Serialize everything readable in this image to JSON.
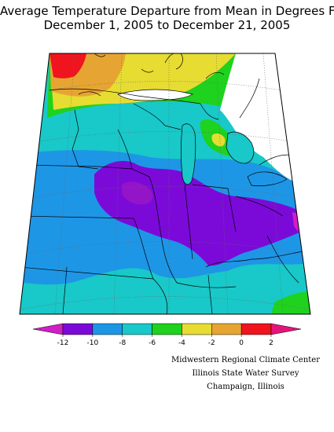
{
  "title": {
    "line1": "Average Temperature Departure from Mean in Degrees F",
    "line2": "December 1, 2005 to December 21, 2005"
  },
  "legend": {
    "ticks": [
      "-12",
      "-10",
      "-8",
      "-6",
      "-4",
      "-2",
      "0",
      "2"
    ],
    "bins": [
      {
        "label": "< -12",
        "color": "#d21ec8"
      },
      {
        "label": "-12 to -10",
        "color": "#7b0ad9"
      },
      {
        "label": "-10 to -8",
        "color": "#1e96e6"
      },
      {
        "label": "-8 to -6",
        "color": "#19c8c8"
      },
      {
        "label": "-6 to -4",
        "color": "#1ed21e"
      },
      {
        "label": "-4 to -2",
        "color": "#e6dc32"
      },
      {
        "label": "-2 to 0",
        "color": "#e6a532"
      },
      {
        "label": "0 to 2",
        "color": "#f0141e"
      },
      {
        "label": "> 2",
        "color": "#e6147a"
      }
    ]
  },
  "credits": {
    "line1": "Midwestern Regional Climate Center",
    "line2": "Illinois State Water Survey",
    "line3": "Champaign, Illinois"
  },
  "colors": {
    "purple_dark": "#8a0ad9",
    "purple": "#7b0ad9",
    "blue": "#1e96e6",
    "cyan": "#19c8c8",
    "green": "#1ed21e",
    "yellow": "#e6dc32",
    "orange": "#e6a532",
    "red": "#f0141e",
    "magenta": "#d21ec8"
  }
}
